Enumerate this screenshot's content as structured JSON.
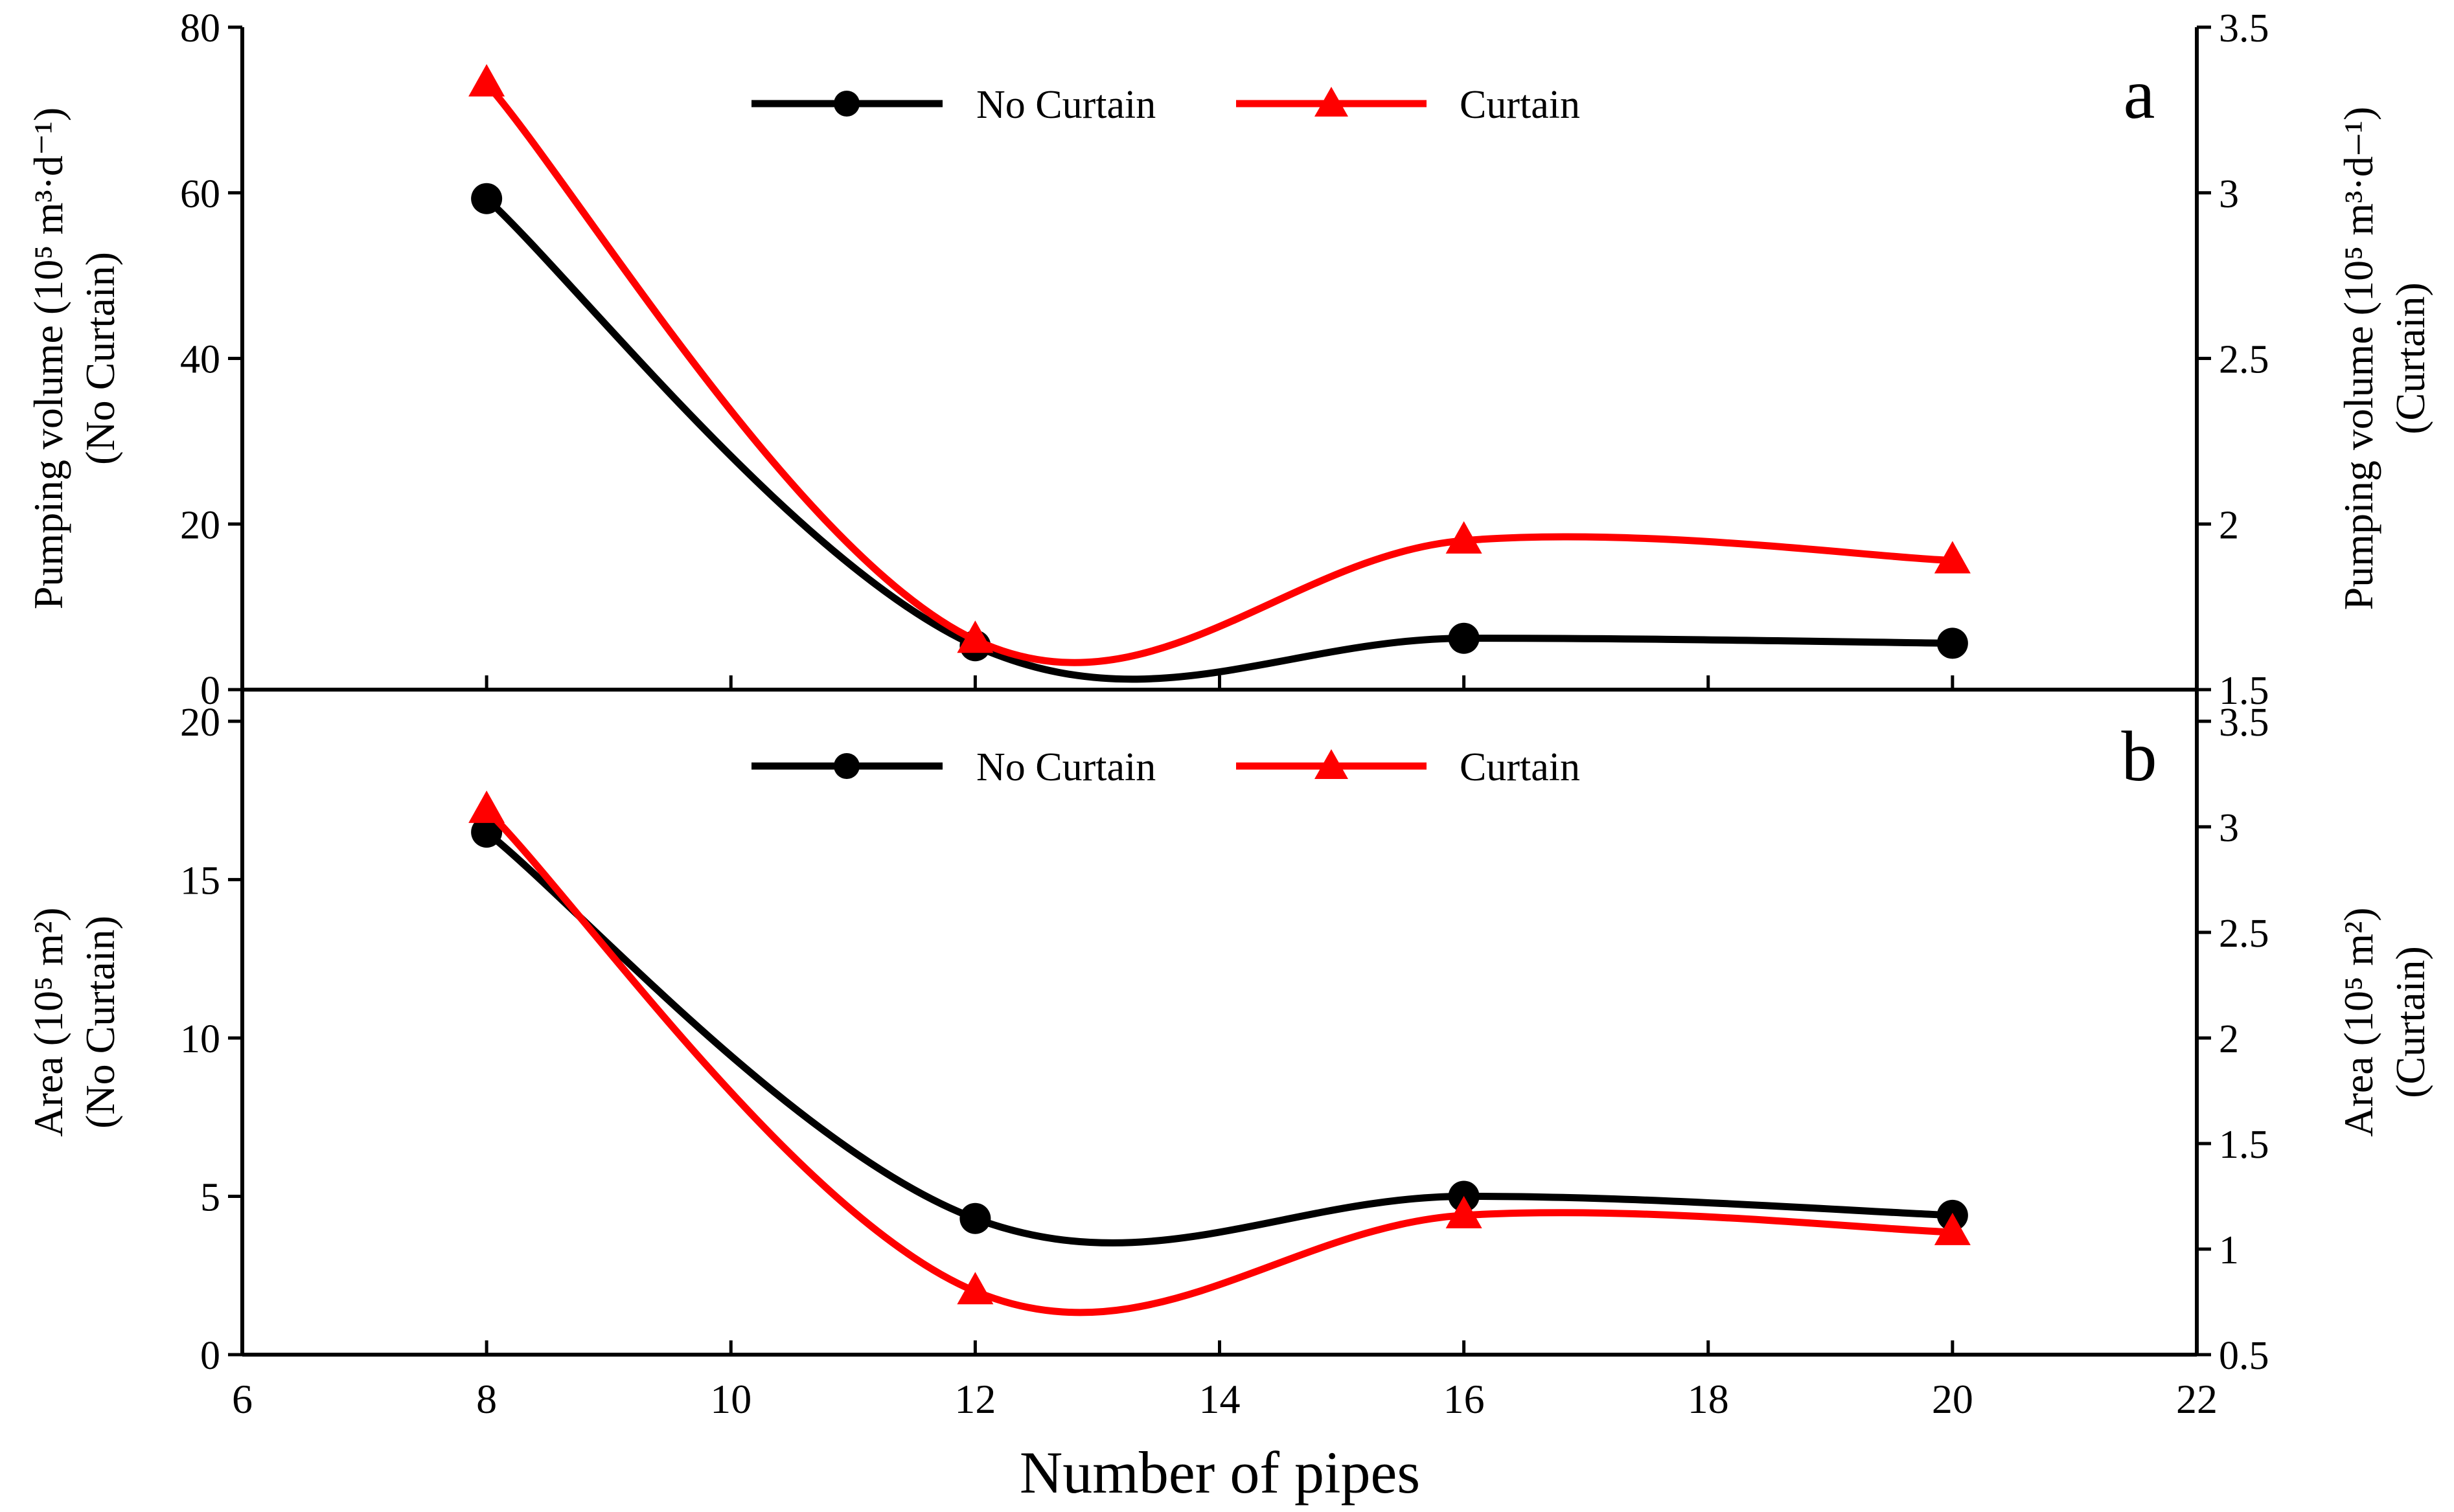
{
  "figure": {
    "xlabel": "Number of pipes",
    "x_ticks": [
      "6",
      "8",
      "10",
      "12",
      "14",
      "16",
      "18",
      "20",
      "22"
    ],
    "legend": {
      "no_curtain": "No Curtain",
      "curtain": "Curtain"
    },
    "colors": {
      "no_curtain": "#000000",
      "curtain": "#ff0000",
      "axis": "#000000"
    }
  },
  "chart_data": [
    {
      "type": "line",
      "panel_label": "a",
      "x": [
        8,
        12,
        16,
        20
      ],
      "xlim": [
        6,
        22
      ],
      "left_axis": {
        "label_line1": "Pumping volume (10⁵ m³·d⁻¹)",
        "label_line2": "(No Curtain)",
        "ylim": [
          0,
          80
        ],
        "ticks": [
          "0",
          "20",
          "40",
          "60",
          "80"
        ]
      },
      "right_axis": {
        "label_line1": "Pumping volume (10⁵ m³·d−¹)",
        "label_line2": "(Curtain)",
        "ylim": [
          1.5,
          3.5
        ],
        "ticks": [
          "1.5",
          "2",
          "2.5",
          "3",
          "3.5"
        ]
      },
      "series": [
        {
          "name": "No Curtain",
          "axis": "left",
          "marker": "circle",
          "values": [
            59.3,
            5.3,
            6.2,
            5.6
          ]
        },
        {
          "name": "Curtain",
          "axis": "right",
          "marker": "triangle",
          "values": [
            3.33,
            1.65,
            1.95,
            1.89
          ]
        }
      ]
    },
    {
      "type": "line",
      "panel_label": "b",
      "x": [
        8,
        12,
        16,
        20
      ],
      "xlim": [
        6,
        22
      ],
      "left_axis": {
        "label_line1": "Area (10⁵ m²)",
        "label_line2": "(No Curtain)",
        "ylim": [
          0,
          21
        ],
        "ticks": [
          "0",
          "5",
          "10",
          "15",
          "20"
        ]
      },
      "right_axis": {
        "label_line1": "Area (10⁵ m²)",
        "label_line2": "(Curtain)",
        "ylim": [
          0.5,
          3.65
        ],
        "ticks": [
          "0.5",
          "1",
          "1.5",
          "2",
          "2.5",
          "3",
          "3.5"
        ]
      },
      "series": [
        {
          "name": "No Curtain",
          "axis": "left",
          "marker": "circle",
          "values": [
            16.5,
            4.3,
            5.0,
            4.4
          ]
        },
        {
          "name": "Curtain",
          "axis": "right",
          "marker": "triangle",
          "values": [
            3.08,
            0.8,
            1.16,
            1.08
          ]
        }
      ]
    }
  ]
}
